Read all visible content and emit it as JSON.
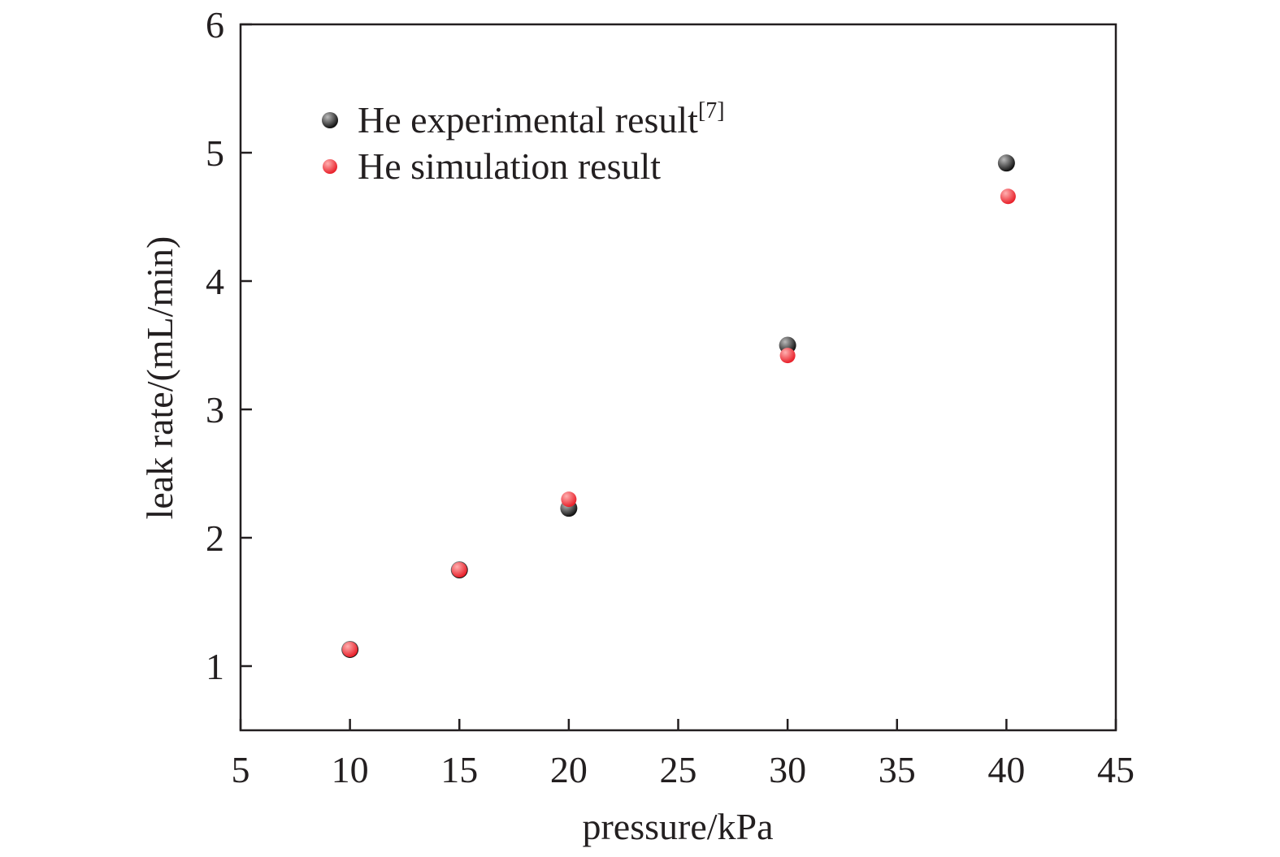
{
  "chart_data": {
    "type": "scatter",
    "xlabel": "pressure/kPa",
    "ylabel": "leak rate/(mL/min)",
    "xlim": [
      5,
      45
    ],
    "ylim": [
      0.5,
      6
    ],
    "xticks": [
      5,
      10,
      15,
      20,
      25,
      30,
      35,
      40,
      45
    ],
    "yticks": [
      1,
      2,
      3,
      4,
      5,
      6
    ],
    "grid": false,
    "legend_position": "top-left",
    "series": [
      {
        "name": "He experimental result",
        "name_superscript": "[7]",
        "color": "#111111",
        "highlight": "#bbbbbb",
        "x": [
          10,
          15,
          20,
          30,
          40
        ],
        "y": [
          1.13,
          1.75,
          2.23,
          3.5,
          4.92
        ]
      },
      {
        "name": "He simulation result",
        "name_superscript": "",
        "color": "#e8202a",
        "highlight": "#ffb0b0",
        "x": [
          10,
          15,
          20,
          30,
          40
        ],
        "y": [
          1.13,
          1.75,
          2.3,
          3.42,
          4.66
        ]
      }
    ]
  }
}
